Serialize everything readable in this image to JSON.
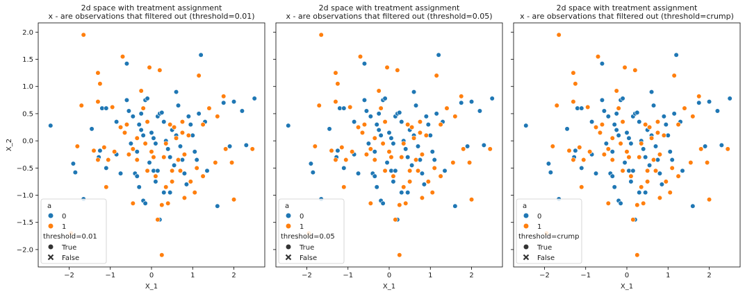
{
  "colors": {
    "class0": "#1f77b4",
    "class1": "#ff7f0e",
    "marker_edge": "#ffffff",
    "axis": "#000000",
    "legend_border": "#cccccc"
  },
  "shared": {
    "ylabel": "X_2",
    "xlabel": "X_1",
    "title_line1": "2d space with treatment assignment",
    "xlim": [
      -2.75,
      2.75
    ],
    "ylim": [
      -2.32,
      2.17
    ],
    "xticks": [
      -2,
      -1,
      0,
      1,
      2
    ],
    "yticks": [
      -2.0,
      -1.5,
      -1.0,
      -0.5,
      0.0,
      0.5,
      1.0,
      1.5,
      2.0
    ],
    "legend": {
      "hue_title": "a",
      "hue_labels": [
        "0",
        "1"
      ],
      "style_labels": [
        "True",
        "False"
      ]
    }
  },
  "chart_data": [
    {
      "type": "scatter",
      "title": "2d space with treatment assignment\nx - are observations that filtered out (threshold=0.01)",
      "title_line2": "x - are observations that filtered out (threshold=0.01)",
      "xlabel": "X_1",
      "ylabel": "X_2",
      "style_title": "threshold=0.01",
      "legend_position": "lower-left"
    },
    {
      "type": "scatter",
      "title": "2d space with treatment assignment\nx - are observations that filtered out (threshold=0.05)",
      "title_line2": "x - are observations that filtered out (threshold=0.05)",
      "xlabel": "X_1",
      "ylabel": "",
      "style_title": "threshold=0.05",
      "legend_position": "lower-left"
    },
    {
      "type": "scatter",
      "title": "2d space with treatment assignment\nx - are observations that filtered out (threshold=crump)",
      "title_line2": "x - are observations that filtered out (threshold=crump)",
      "xlabel": "X_1",
      "ylabel": "",
      "style_title": "threshold=crump",
      "legend_position": "lower-left"
    }
  ],
  "points": {
    "class0": [
      [
        -2.45,
        0.28
      ],
      [
        -1.9,
        -0.42
      ],
      [
        -1.85,
        -0.58
      ],
      [
        -1.65,
        -1.07
      ],
      [
        -1.2,
        0.6
      ],
      [
        -1.1,
        0.6
      ],
      [
        -1.28,
        -0.3
      ],
      [
        -1.25,
        -0.18
      ],
      [
        -1.1,
        -0.5
      ],
      [
        -0.85,
        -0.25
      ],
      [
        -0.6,
        1.42
      ],
      [
        -0.6,
        0.75
      ],
      [
        -0.55,
        0.55
      ],
      [
        -0.45,
        0.45
      ],
      [
        -0.35,
        -0.2
      ],
      [
        -0.3,
        0.3
      ],
      [
        -0.25,
        0.5
      ],
      [
        -0.2,
        0.1
      ],
      [
        -0.15,
        0.75
      ],
      [
        -0.1,
        0.78
      ],
      [
        0.0,
        0.15
      ],
      [
        0.05,
        0.05
      ],
      [
        0.1,
        -0.05
      ],
      [
        0.15,
        0.45
      ],
      [
        0.2,
        0.5
      ],
      [
        0.25,
        0.52
      ],
      [
        0.3,
        0.35
      ],
      [
        0.35,
        0.0
      ],
      [
        0.4,
        -0.15
      ],
      [
        0.45,
        -0.3
      ],
      [
        0.5,
        0.2
      ],
      [
        0.55,
        -0.45
      ],
      [
        0.6,
        0.1
      ],
      [
        0.65,
        0.65
      ],
      [
        0.7,
        -0.1
      ],
      [
        0.75,
        -0.35
      ],
      [
        0.8,
        -0.6
      ],
      [
        0.85,
        -0.8
      ],
      [
        0.9,
        0.45
      ],
      [
        0.95,
        0.3
      ],
      [
        1.0,
        0.1
      ],
      [
        1.05,
        -0.2
      ],
      [
        1.1,
        -0.35
      ],
      [
        1.15,
        0.5
      ],
      [
        1.2,
        1.58
      ],
      [
        1.3,
        0.35
      ],
      [
        1.35,
        -0.55
      ],
      [
        1.6,
        -1.2
      ],
      [
        1.75,
        0.7
      ],
      [
        1.9,
        -0.1
      ],
      [
        2.0,
        0.72
      ],
      [
        2.2,
        0.55
      ],
      [
        2.3,
        -0.08
      ],
      [
        2.5,
        0.78
      ],
      [
        -0.5,
        -0.05
      ],
      [
        -0.4,
        -0.6
      ],
      [
        -0.35,
        -0.65
      ],
      [
        -0.3,
        -0.85
      ],
      [
        -0.2,
        -1.1
      ],
      [
        -0.15,
        -1.15
      ],
      [
        0.05,
        -0.55
      ],
      [
        0.1,
        -0.75
      ],
      [
        0.2,
        -1.45
      ],
      [
        0.3,
        -0.95
      ],
      [
        -0.85,
        0.35
      ],
      [
        -0.75,
        -0.6
      ],
      [
        -1.45,
        0.22
      ],
      [
        0.45,
        -0.95
      ],
      [
        0.15,
        -0.55
      ],
      [
        -0.05,
        -0.4
      ],
      [
        -0.25,
        0.2
      ],
      [
        0.6,
        0.9
      ]
    ],
    "class1": [
      [
        -1.65,
        1.95
      ],
      [
        -1.7,
        0.65
      ],
      [
        -1.8,
        -0.1
      ],
      [
        -1.95,
        -1.7
      ],
      [
        -1.3,
        1.25
      ],
      [
        -1.25,
        1.05
      ],
      [
        -1.3,
        0.72
      ],
      [
        -1.4,
        -0.18
      ],
      [
        -1.3,
        -0.35
      ],
      [
        -1.15,
        -0.12
      ],
      [
        -1.05,
        -0.35
      ],
      [
        -0.75,
        0.25
      ],
      [
        -0.7,
        1.55
      ],
      [
        -0.65,
        0.15
      ],
      [
        -0.55,
        -0.25
      ],
      [
        -0.45,
        -0.15
      ],
      [
        -0.35,
        0.05
      ],
      [
        -0.25,
        0.92
      ],
      [
        -0.2,
        0.6
      ],
      [
        -0.15,
        -0.05
      ],
      [
        -0.1,
        -0.55
      ],
      [
        -0.05,
        1.35
      ],
      [
        0.05,
        -0.3
      ],
      [
        0.1,
        -0.65
      ],
      [
        0.2,
        1.3
      ],
      [
        0.25,
        -1.18
      ],
      [
        0.3,
        -0.3
      ],
      [
        0.35,
        -0.85
      ],
      [
        0.4,
        -1.15
      ],
      [
        0.45,
        0.3
      ],
      [
        0.5,
        -0.55
      ],
      [
        0.55,
        0.25
      ],
      [
        0.6,
        0.05
      ],
      [
        0.65,
        -0.35
      ],
      [
        0.7,
        -0.55
      ],
      [
        0.75,
        0.15
      ],
      [
        0.8,
        -0.25
      ],
      [
        0.9,
        0.1
      ],
      [
        0.95,
        -0.75
      ],
      [
        1.05,
        -0.95
      ],
      [
        1.1,
        -0.5
      ],
      [
        1.15,
        1.2
      ],
      [
        1.25,
        0.3
      ],
      [
        1.4,
        0.6
      ],
      [
        1.55,
        -0.4
      ],
      [
        1.6,
        0.45
      ],
      [
        1.75,
        0.82
      ],
      [
        1.8,
        -0.15
      ],
      [
        1.95,
        -0.4
      ],
      [
        2.0,
        -1.08
      ],
      [
        2.45,
        -0.15
      ],
      [
        -0.9,
        -0.2
      ],
      [
        -0.45,
        -1.15
      ],
      [
        0.15,
        -1.45
      ],
      [
        -0.6,
        0.3
      ],
      [
        0.0,
        -0.2
      ],
      [
        0.25,
        -2.1
      ],
      [
        -0.35,
        -0.35
      ],
      [
        0.5,
        -0.75
      ],
      [
        0.8,
        -1.05
      ],
      [
        -1.1,
        -0.85
      ],
      [
        -0.95,
        0.62
      ],
      [
        -0.1,
        0.35
      ],
      [
        0.35,
        -0.05
      ],
      [
        0.75,
        0.35
      ],
      [
        1.25,
        -0.65
      ]
    ]
  }
}
